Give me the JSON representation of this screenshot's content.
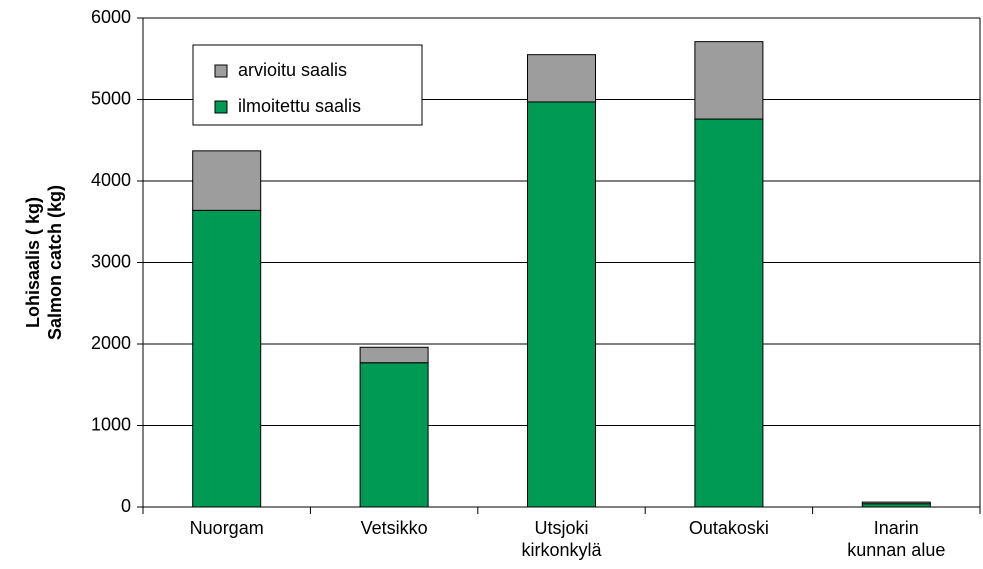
{
  "chart_data": {
    "type": "stacked_bar",
    "ylabel": [
      "Lohisaalis ( kg)",
      "Salmon catch (kg)"
    ],
    "categories": [
      [
        "Nuorgam"
      ],
      [
        "Vetsikko"
      ],
      [
        "Utsjoki",
        "kirkonkylä"
      ],
      [
        "Outakoski"
      ],
      [
        "Inarin",
        "kunnan alue"
      ]
    ],
    "series": [
      {
        "name": "ilmoitettu saalis",
        "color": "#009a54",
        "values": [
          3640,
          1770,
          4970,
          4760,
          40
        ]
      },
      {
        "name": "arvioitu saalis",
        "color": "#9d9d9d",
        "values": [
          730,
          190,
          580,
          950,
          20
        ]
      }
    ],
    "ylim": [
      0,
      6000
    ],
    "yticks": [
      0,
      1000,
      2000,
      3000,
      4000,
      5000,
      6000
    ],
    "grid": true
  }
}
